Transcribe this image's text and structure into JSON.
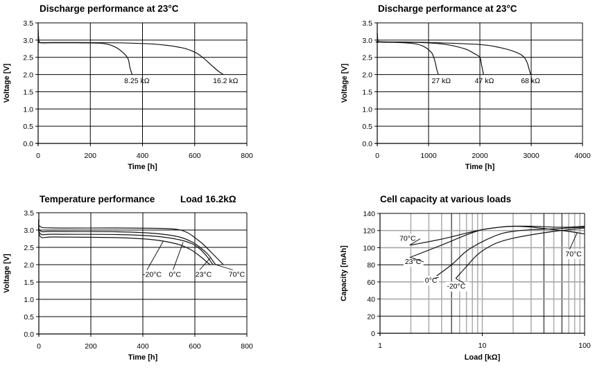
{
  "chart_data": [
    {
      "id": "discharge_low",
      "type": "line",
      "title": "Discharge performance at 23°C",
      "xlabel": "Time [h]",
      "ylabel": "Voltage [V]",
      "xlim": [
        0,
        800
      ],
      "ylim": [
        0,
        3.5
      ],
      "xticks": [
        0,
        200,
        400,
        600,
        800
      ],
      "yticks": [
        0.0,
        0.5,
        1.0,
        1.5,
        2.0,
        2.5,
        3.0,
        3.5
      ],
      "ytick_labels": [
        "0.0",
        "0.5",
        "1.0",
        "1.5",
        "2.0",
        "2.5",
        "3.0",
        "3.5"
      ],
      "xscale": "linear",
      "grid": true,
      "series": [
        {
          "name": "8.25 kΩ",
          "label": "8.25 kΩ",
          "x": [
            0,
            3,
            10,
            50,
            150,
            250,
            300,
            330,
            345,
            352,
            360
          ],
          "y": [
            3.3,
            2.97,
            2.92,
            2.92,
            2.92,
            2.9,
            2.78,
            2.6,
            2.45,
            2.2,
            2.0
          ]
        },
        {
          "name": "16.2 kΩ",
          "label": "16.2 kΩ",
          "x": [
            0,
            3,
            10,
            100,
            300,
            450,
            550,
            600,
            630,
            660,
            690,
            710
          ],
          "y": [
            3.3,
            2.97,
            2.93,
            2.93,
            2.92,
            2.88,
            2.78,
            2.65,
            2.5,
            2.3,
            2.1,
            2.0
          ]
        }
      ],
      "annotations": [
        {
          "text": "8.25 kΩ",
          "x": 330,
          "y": 1.75
        },
        {
          "text": "16.2 kΩ",
          "x": 670,
          "y": 1.75
        }
      ]
    },
    {
      "id": "discharge_high",
      "type": "line",
      "title": "Discharge performance at 23°C",
      "xlabel": "Time [h]",
      "ylabel": "Voltage [V]",
      "xlim": [
        0,
        4000
      ],
      "ylim": [
        0,
        3.5
      ],
      "xticks": [
        0,
        1000,
        2000,
        3000,
        4000
      ],
      "yticks": [
        0.0,
        0.5,
        1.0,
        1.5,
        2.0,
        2.5,
        3.0,
        3.5
      ],
      "ytick_labels": [
        "0.0",
        "0.5",
        "1.0",
        "1.5",
        "2.0",
        "2.5",
        "3.0",
        "3.5"
      ],
      "xscale": "linear",
      "grid": true,
      "series": [
        {
          "name": "27 kΩ",
          "label": "27 kΩ",
          "x": [
            0,
            15,
            60,
            400,
            700,
            900,
            1050,
            1100,
            1130,
            1160,
            1190
          ],
          "y": [
            3.2,
            2.96,
            2.94,
            2.93,
            2.9,
            2.82,
            2.65,
            2.5,
            2.35,
            2.15,
            2.0
          ]
        },
        {
          "name": "47 kΩ",
          "label": "47 kΩ",
          "x": [
            0,
            15,
            60,
            800,
            1300,
            1700,
            1900,
            2000,
            2030,
            2050,
            2070
          ],
          "y": [
            3.2,
            2.96,
            2.95,
            2.93,
            2.88,
            2.75,
            2.6,
            2.5,
            2.3,
            2.15,
            2.0
          ]
        },
        {
          "name": "68 kΩ",
          "label": "68 kΩ",
          "x": [
            0,
            15,
            60,
            1000,
            2000,
            2400,
            2700,
            2850,
            2920,
            2960,
            2990
          ],
          "y": [
            3.2,
            2.96,
            2.95,
            2.93,
            2.87,
            2.78,
            2.65,
            2.52,
            2.35,
            2.15,
            2.0
          ]
        }
      ],
      "annotations": [
        {
          "text": "27 kΩ",
          "x": 1060,
          "y": 1.75
        },
        {
          "text": "47 kΩ",
          "x": 1900,
          "y": 1.75
        },
        {
          "text": "68 kΩ",
          "x": 2800,
          "y": 1.75
        }
      ]
    },
    {
      "id": "temperature",
      "type": "line",
      "title": "Temperature performance",
      "subtitle": "Load 16.2kΩ",
      "xlabel": "Time [h]",
      "ylabel": "Voltage [V]",
      "xlim": [
        0,
        800
      ],
      "ylim": [
        0,
        3.5
      ],
      "xticks": [
        0,
        200,
        400,
        600,
        800
      ],
      "yticks": [
        0.0,
        0.5,
        1.0,
        1.5,
        2.0,
        2.5,
        3.0,
        3.5
      ],
      "ytick_labels": [
        "0.0",
        "0.5",
        "1.0",
        "1.5",
        "2.0",
        "2.5",
        "3.0",
        "3.5"
      ],
      "xscale": "linear",
      "grid": true,
      "series": [
        {
          "name": "70°C",
          "label": "70°C",
          "x": [
            0,
            5,
            60,
            300,
            450,
            530,
            570,
            600,
            630,
            660,
            690,
            710
          ],
          "y": [
            3.3,
            3.1,
            3.06,
            3.06,
            3.05,
            3.02,
            2.93,
            2.78,
            2.6,
            2.38,
            2.15,
            2.0
          ]
        },
        {
          "name": "23°C",
          "label": "23°C",
          "x": [
            0,
            5,
            60,
            300,
            450,
            540,
            590,
            620,
            650,
            670,
            680
          ],
          "y": [
            3.3,
            2.98,
            2.96,
            2.95,
            2.9,
            2.8,
            2.65,
            2.5,
            2.3,
            2.1,
            2.0
          ]
        },
        {
          "name": "0°C",
          "label": "0°C",
          "x": [
            0,
            5,
            60,
            300,
            450,
            540,
            590,
            620,
            645,
            660,
            670
          ],
          "y": [
            3.3,
            2.9,
            2.88,
            2.87,
            2.82,
            2.72,
            2.6,
            2.45,
            2.25,
            2.1,
            2.0
          ]
        },
        {
          "name": "-20°C",
          "label": "-20°C",
          "x": [
            0,
            5,
            60,
            300,
            440,
            530,
            580,
            610,
            635,
            650,
            660
          ],
          "y": [
            3.3,
            2.82,
            2.8,
            2.78,
            2.72,
            2.6,
            2.45,
            2.3,
            2.15,
            2.05,
            2.0
          ]
        }
      ],
      "annotations": [
        {
          "text": "-20°C",
          "x": 400,
          "y": 1.65,
          "pointer_to": [
            478,
            2.67
          ]
        },
        {
          "text": "0°C",
          "x": 500,
          "y": 1.65,
          "pointer_to": [
            555,
            2.65
          ]
        },
        {
          "text": "23°C",
          "x": 602,
          "y": 1.65,
          "pointer_to": [
            660,
            2.2
          ]
        },
        {
          "text": "70°C",
          "x": 730,
          "y": 1.65,
          "pointer_to": [
            680,
            2.0
          ]
        }
      ]
    },
    {
      "id": "capacity",
      "type": "line",
      "title": "Cell capacity at various loads",
      "xlabel": "Load [kΩ]",
      "ylabel": "Capacity [mAh]",
      "xlim": [
        1,
        100
      ],
      "ylim": [
        0,
        140
      ],
      "xscale": "log",
      "xticks": [
        1,
        10,
        100
      ],
      "yticks": [
        0,
        20,
        40,
        60,
        80,
        100,
        120,
        140
      ],
      "ytick_labels": [
        "0",
        "20",
        "40",
        "60",
        "80",
        "100",
        "120",
        "140"
      ],
      "grid": true,
      "series": [
        {
          "name": "70°C",
          "label": "70°C",
          "x": [
            2,
            4,
            7,
            10,
            15,
            20,
            30,
            50,
            70,
            100
          ],
          "y": [
            103,
            110,
            117,
            121,
            124,
            125,
            124,
            121,
            119,
            116
          ]
        },
        {
          "name": "23°C",
          "label": "23°C",
          "x": [
            2,
            4,
            7,
            10,
            15,
            20,
            30,
            50,
            70,
            100
          ],
          "y": [
            89,
            103,
            115,
            121,
            124,
            125,
            125,
            124,
            124,
            125
          ]
        },
        {
          "name": "0°C",
          "label": "0°C",
          "x": [
            3.3,
            5,
            7,
            10,
            15,
            20,
            30,
            50,
            70,
            100
          ],
          "y": [
            64,
            80,
            96,
            107,
            116,
            119,
            121,
            122,
            123,
            124
          ]
        },
        {
          "name": "-20°C",
          "label": "-20°C",
          "x": [
            5.5,
            7,
            9,
            12,
            15,
            20,
            30,
            50,
            70,
            100
          ],
          "y": [
            64,
            78,
            92,
            102,
            107,
            111,
            115,
            119,
            121,
            123
          ]
        }
      ],
      "annotations": [
        {
          "text": "70°C",
          "x": 1.55,
          "y": 108
        },
        {
          "text": "23°C",
          "x": 1.75,
          "y": 81
        },
        {
          "text": "0°C",
          "x": 2.75,
          "y": 59
        },
        {
          "text": "-20°C",
          "x": 4.5,
          "y": 52
        },
        {
          "text": "70°C",
          "x": 65,
          "y": 90,
          "pointer_to": [
            85,
            118
          ]
        }
      ]
    }
  ]
}
